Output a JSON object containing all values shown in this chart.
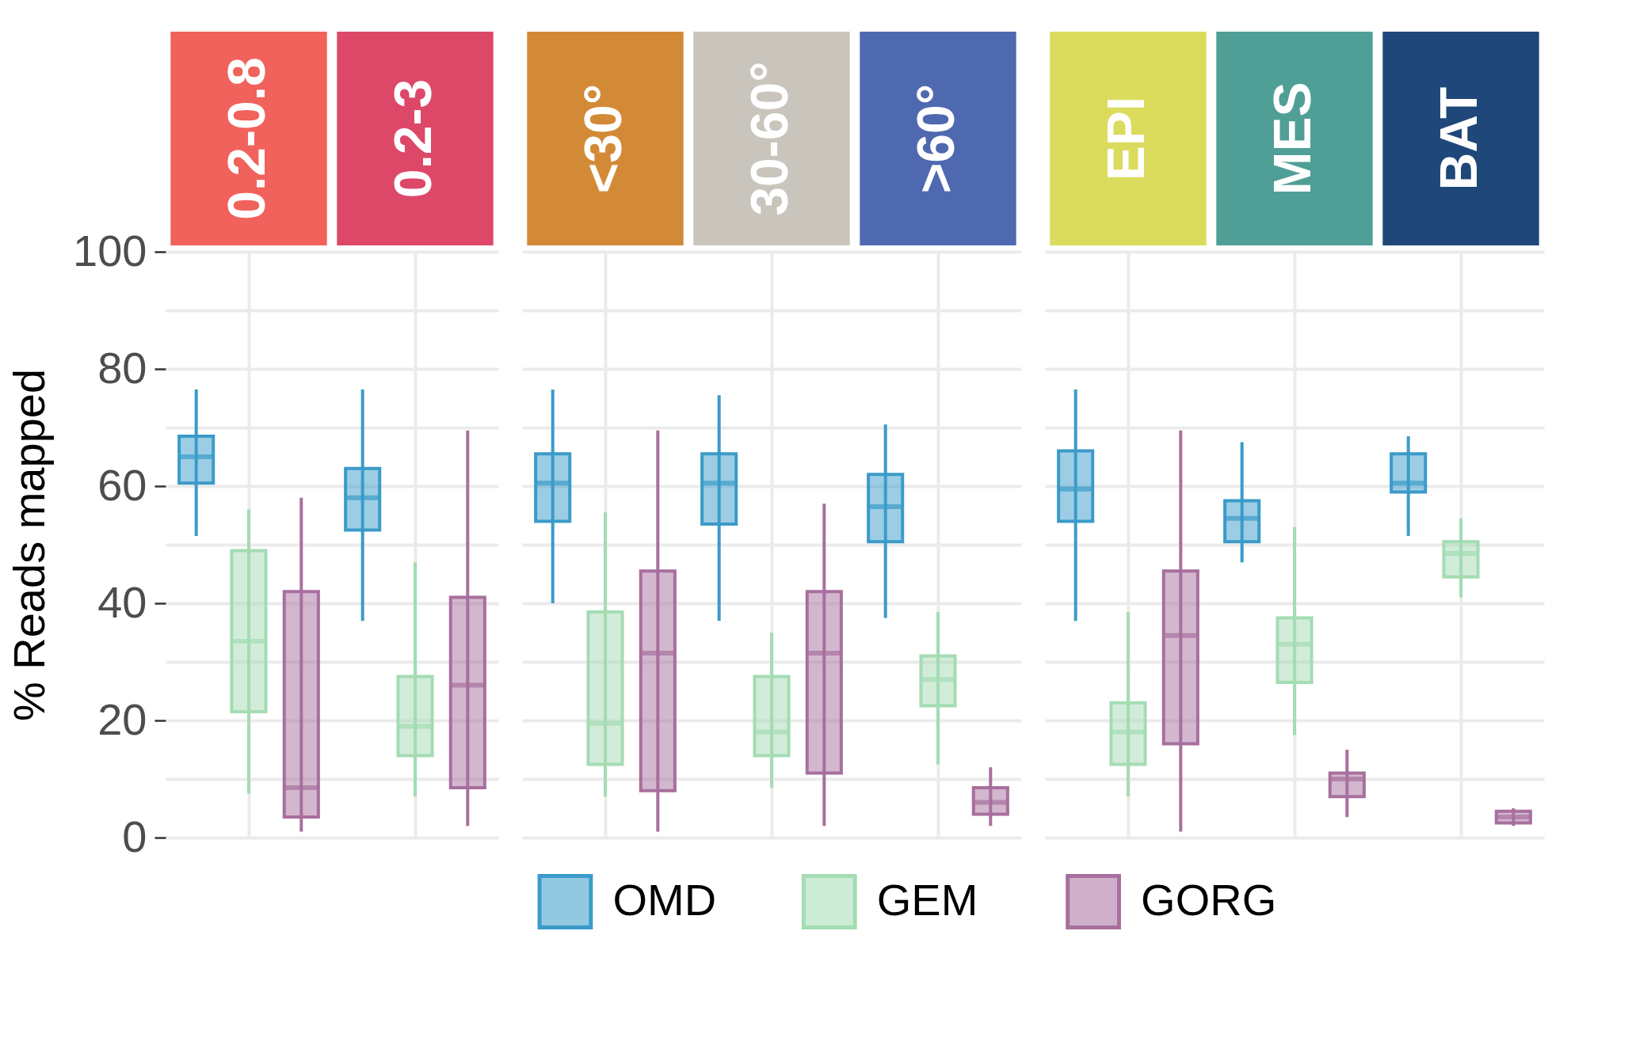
{
  "chart_data": [
    {
      "type": "box",
      "ylabel": "% Reads mapped",
      "categories": [
        "0.2-0.8",
        "0.2-3"
      ],
      "colors": [
        "#f0625b",
        "#dd4869"
      ],
      "ylim": [
        0,
        100
      ],
      "yticks": [
        0,
        {
          "value": 10,
          "label": null
        },
        20,
        {
          "value": 30,
          "label": null
        },
        40,
        {
          "value": 50,
          "label": null
        },
        60,
        {
          "value": 70,
          "label": null
        },
        80,
        {
          "value": 90,
          "label": null
        },
        100
      ],
      "grid": true,
      "tick_labels": "y",
      "legend": "bottom",
      "series": [
        {
          "name": "OMD",
          "color": "#3a9bc9",
          "boxes": [
            {
              "low": 51.5,
              "q1": 60.5,
              "median": 65,
              "q3": 68.5,
              "high": 76.5
            },
            {
              "low": 37,
              "q1": 52.5,
              "median": 58,
              "q3": 63,
              "high": 76.5
            }
          ]
        },
        {
          "name": "GEM",
          "color": "#a4dcb3",
          "boxes": [
            {
              "low": 7.5,
              "q1": 21.5,
              "median": 33.5,
              "q3": 49,
              "high": 56
            },
            {
              "low": 7,
              "q1": 14,
              "median": 19,
              "q3": 27.5,
              "high": 47
            }
          ]
        },
        {
          "name": "GORG",
          "color": "#a86f9e",
          "boxes": [
            {
              "low": 1,
              "q1": 3.5,
              "median": 8.5,
              "q3": 42,
              "high": 58
            },
            {
              "low": 2,
              "q1": 8.5,
              "median": 26,
              "q3": 41,
              "high": 69.5
            }
          ]
        }
      ]
    },
    {
      "type": "box",
      "categories": [
        "<30°",
        "30-60°",
        ">60°"
      ],
      "colors": [
        "#d38a36",
        "#c9c5bd",
        "#4f69b1"
      ],
      "ylim": [
        0,
        100
      ],
      "yticks": [
        0,
        {
          "value": 10,
          "label": null
        },
        20,
        {
          "value": 30,
          "label": null
        },
        40,
        {
          "value": 50,
          "label": null
        },
        60,
        {
          "value": 70,
          "label": null
        },
        80,
        {
          "value": 90,
          "label": null
        },
        100
      ],
      "grid": true,
      "tick_labels": false,
      "legend": "bottom",
      "series": [
        {
          "name": "OMD",
          "color": "#3a9bc9",
          "boxes": [
            {
              "low": 40,
              "q1": 54,
              "median": 60.5,
              "q3": 65.5,
              "high": 76.5
            },
            {
              "low": 37,
              "q1": 53.5,
              "median": 60.5,
              "q3": 65.5,
              "high": 75.5
            },
            {
              "low": 37.5,
              "q1": 50.5,
              "median": 56.5,
              "q3": 62,
              "high": 70.5
            }
          ]
        },
        {
          "name": "GEM",
          "color": "#a4dcb3",
          "boxes": [
            {
              "low": 7,
              "q1": 12.5,
              "median": 19.5,
              "q3": 38.5,
              "high": 55.5
            },
            {
              "low": 8.5,
              "q1": 14,
              "median": 18,
              "q3": 27.5,
              "high": 35
            },
            {
              "low": 12.5,
              "q1": 22.5,
              "median": 27,
              "q3": 31,
              "high": 38.5
            }
          ]
        },
        {
          "name": "GORG",
          "color": "#a86f9e",
          "boxes": [
            {
              "low": 1,
              "q1": 8,
              "median": 31.5,
              "q3": 45.5,
              "high": 69.5
            },
            {
              "low": 2,
              "q1": 11,
              "median": 31.5,
              "q3": 42,
              "high": 57
            },
            {
              "low": 2,
              "q1": 4,
              "median": 6,
              "q3": 8.5,
              "high": 12
            }
          ]
        }
      ]
    },
    {
      "type": "box",
      "categories": [
        "EPI",
        "MES",
        "BAT"
      ],
      "colors": [
        "#dbdb5e",
        "#4f9f97",
        "#1f477a"
      ],
      "ylim": [
        0,
        100
      ],
      "yticks": [
        0,
        {
          "value": 10,
          "label": null
        },
        20,
        {
          "value": 30,
          "label": null
        },
        40,
        {
          "value": 50,
          "label": null
        },
        60,
        {
          "value": 70,
          "label": null
        },
        80,
        {
          "value": 90,
          "label": null
        },
        100
      ],
      "grid": true,
      "tick_labels": false,
      "legend": "bottom",
      "series": [
        {
          "name": "OMD",
          "color": "#3a9bc9",
          "boxes": [
            {
              "low": 37,
              "q1": 54,
              "median": 59.5,
              "q3": 66,
              "high": 76.5
            },
            {
              "low": 47,
              "q1": 50.5,
              "median": 54.5,
              "q3": 57.5,
              "high": 67.5
            },
            {
              "low": 51.5,
              "q1": 59,
              "median": 60.5,
              "q3": 65.5,
              "high": 68.5
            }
          ]
        },
        {
          "name": "GEM",
          "color": "#a4dcb3",
          "boxes": [
            {
              "low": 7,
              "q1": 12.5,
              "median": 18,
              "q3": 23,
              "high": 38.5
            },
            {
              "low": 17.5,
              "q1": 26.5,
              "median": 33,
              "q3": 37.5,
              "high": 53
            },
            {
              "low": 41,
              "q1": 44.5,
              "median": 48.5,
              "q3": 50.5,
              "high": 54.5
            }
          ]
        },
        {
          "name": "GORG",
          "color": "#a86f9e",
          "boxes": [
            {
              "low": 1,
              "q1": 16,
              "median": 34.5,
              "q3": 45.5,
              "high": 69.5
            },
            {
              "low": 3.5,
              "q1": 7,
              "median": 10,
              "q3": 11,
              "high": 15
            },
            {
              "low": 2,
              "q1": 2.5,
              "median": 3.5,
              "q3": 4.5,
              "high": 5
            }
          ]
        }
      ]
    }
  ]
}
